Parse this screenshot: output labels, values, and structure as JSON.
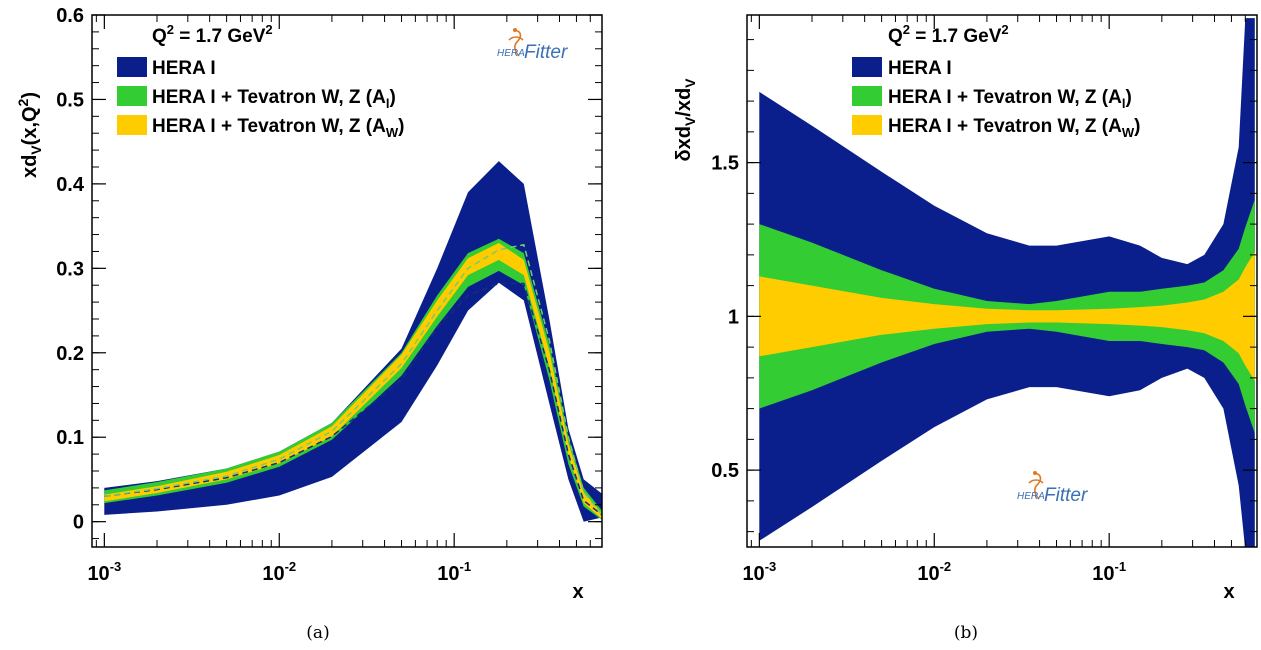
{
  "chart_data": [
    {
      "type": "area",
      "panel": "(a)",
      "ylabel": "xd_V(x,Q^2)",
      "ylabel_parts": {
        "main": "xd",
        "sub": "V",
        "open": "(x,Q",
        "sup": "2",
        "close": ")"
      },
      "xlabel": "x",
      "xscale": "log",
      "xlim": [
        0.00085,
        0.7
      ],
      "ylim": [
        -0.03,
        0.6
      ],
      "annotation": {
        "pre": "Q",
        "sup": "2",
        "post": " = 1.7 GeV",
        "sup2": "2"
      },
      "logo": {
        "small": "HERA",
        "big": "Fitter"
      },
      "x_ticks": [
        {
          "value": 0.001,
          "base": "10",
          "exp": "-3"
        },
        {
          "value": 0.01,
          "base": "10",
          "exp": "-2"
        },
        {
          "value": 0.1,
          "base": "10",
          "exp": "-1"
        }
      ],
      "y_ticks": [
        {
          "value": 0,
          "label": "0"
        },
        {
          "value": 0.1,
          "label": "0.1"
        },
        {
          "value": 0.2,
          "label": "0.2"
        },
        {
          "value": 0.3,
          "label": "0.3"
        },
        {
          "value": 0.4,
          "label": "0.4"
        },
        {
          "value": 0.5,
          "label": "0.5"
        },
        {
          "value": 0.6,
          "label": "0.6"
        }
      ],
      "legend_position": "top-left",
      "x": [
        0.001,
        0.002,
        0.005,
        0.01,
        0.02,
        0.05,
        0.08,
        0.12,
        0.18,
        0.25,
        0.35,
        0.45,
        0.55,
        0.7
      ],
      "series": [
        {
          "name": "HERA I",
          "color": "#0b1f8c",
          "upper": [
            0.04,
            0.048,
            0.063,
            0.083,
            0.117,
            0.205,
            0.3,
            0.39,
            0.427,
            0.4,
            0.24,
            0.11,
            0.05,
            0.033
          ],
          "lower": [
            0.008,
            0.012,
            0.02,
            0.031,
            0.053,
            0.118,
            0.185,
            0.25,
            0.283,
            0.262,
            0.14,
            0.05,
            0.0,
            0.005
          ]
        },
        {
          "name": "HERA I + Tevatron W, Z (A_l)",
          "legend": {
            "main": "HERA I + Tevatron W, Z (A",
            "sub": "l",
            "close": ")"
          },
          "color": "#33cc33",
          "upper": [
            0.037,
            0.047,
            0.063,
            0.083,
            0.117,
            0.2,
            0.268,
            0.318,
            0.335,
            0.318,
            0.21,
            0.1,
            0.04,
            0.013
          ],
          "lower": [
            0.022,
            0.031,
            0.046,
            0.065,
            0.097,
            0.173,
            0.232,
            0.278,
            0.297,
            0.28,
            0.168,
            0.068,
            0.018,
            0.002
          ]
        },
        {
          "name": "HERA I + Tevatron W, Z (A_W)",
          "legend": {
            "main": "HERA I + Tevatron W, Z (A",
            "sub": "W",
            "close": ")"
          },
          "color": "#ffcc00",
          "upper": [
            0.032,
            0.042,
            0.059,
            0.079,
            0.113,
            0.198,
            0.262,
            0.312,
            0.33,
            0.31,
            0.202,
            0.093,
            0.035,
            0.01
          ],
          "lower": [
            0.024,
            0.034,
            0.05,
            0.069,
            0.101,
            0.182,
            0.243,
            0.292,
            0.31,
            0.292,
            0.183,
            0.078,
            0.022,
            0.003
          ]
        }
      ],
      "dashed_curves": [
        {
          "color": "#1a2a80",
          "values": [
            0.03,
            0.038,
            0.052,
            0.07,
            0.101,
            0.168,
            0.23,
            0.268,
            0.282,
            0.282,
            0.18,
            0.08,
            0.025,
            0.008
          ]
        },
        {
          "color": "#6fcf6f",
          "values": [
            0.03,
            0.039,
            0.054,
            0.074,
            0.107,
            0.187,
            0.25,
            0.3,
            0.322,
            0.328,
            0.215,
            0.1,
            0.035,
            0.008
          ]
        }
      ]
    },
    {
      "type": "area",
      "panel": "(b)",
      "ylabel": "δxd_V/xd_V",
      "ylabel_parts": {
        "pre": "δxd",
        "sub1": "V",
        "mid": "/xd",
        "sub2": "V"
      },
      "xlabel": "x",
      "xscale": "log",
      "xlim": [
        0.00085,
        0.7
      ],
      "ylim": [
        0.25,
        1.98
      ],
      "annotation": {
        "pre": "Q",
        "sup": "2",
        "post": " = 1.7 GeV",
        "sup2": "2"
      },
      "logo": {
        "small": "HERA",
        "big": "Fitter"
      },
      "x_ticks": [
        {
          "value": 0.001,
          "base": "10",
          "exp": "-3"
        },
        {
          "value": 0.01,
          "base": "10",
          "exp": "-2"
        },
        {
          "value": 0.1,
          "base": "10",
          "exp": "-1"
        }
      ],
      "y_ticks": [
        {
          "value": 0.5,
          "label": "0.5"
        },
        {
          "value": 1.0,
          "label": "1"
        },
        {
          "value": 1.5,
          "label": "1.5"
        }
      ],
      "legend_position": "top-center",
      "x": [
        0.001,
        0.002,
        0.005,
        0.01,
        0.02,
        0.035,
        0.05,
        0.1,
        0.15,
        0.2,
        0.28,
        0.35,
        0.45,
        0.55,
        0.6,
        0.68
      ],
      "series": [
        {
          "name": "HERA I",
          "color": "#0b1f8c",
          "upper": [
            1.73,
            1.62,
            1.47,
            1.36,
            1.27,
            1.23,
            1.23,
            1.26,
            1.23,
            1.19,
            1.17,
            1.2,
            1.3,
            1.55,
            1.97,
            1.97
          ],
          "lower": [
            0.27,
            0.38,
            0.53,
            0.64,
            0.73,
            0.77,
            0.77,
            0.74,
            0.76,
            0.8,
            0.83,
            0.8,
            0.7,
            0.45,
            0.24,
            0.24
          ]
        },
        {
          "name": "HERA I + Tevatron W, Z (A_l)",
          "legend": {
            "main": "HERA I + Tevatron W, Z (A",
            "sub": "l",
            "close": ")"
          },
          "color": "#33cc33",
          "upper": [
            1.3,
            1.24,
            1.15,
            1.09,
            1.05,
            1.04,
            1.05,
            1.08,
            1.08,
            1.09,
            1.1,
            1.11,
            1.15,
            1.22,
            1.29,
            1.38
          ],
          "lower": [
            0.7,
            0.76,
            0.85,
            0.91,
            0.95,
            0.96,
            0.95,
            0.92,
            0.92,
            0.91,
            0.9,
            0.89,
            0.85,
            0.78,
            0.71,
            0.62
          ]
        },
        {
          "name": "HERA I + Tevatron W, Z (A_W)",
          "legend": {
            "main": "HERA I + Tevatron W, Z (A",
            "sub": "W",
            "close": ")"
          },
          "color": "#ffcc00",
          "upper": [
            1.13,
            1.1,
            1.06,
            1.04,
            1.025,
            1.02,
            1.02,
            1.025,
            1.03,
            1.035,
            1.045,
            1.055,
            1.08,
            1.12,
            1.16,
            1.21
          ],
          "lower": [
            0.87,
            0.9,
            0.94,
            0.96,
            0.975,
            0.98,
            0.98,
            0.975,
            0.97,
            0.965,
            0.955,
            0.945,
            0.92,
            0.88,
            0.84,
            0.79
          ]
        }
      ]
    }
  ]
}
